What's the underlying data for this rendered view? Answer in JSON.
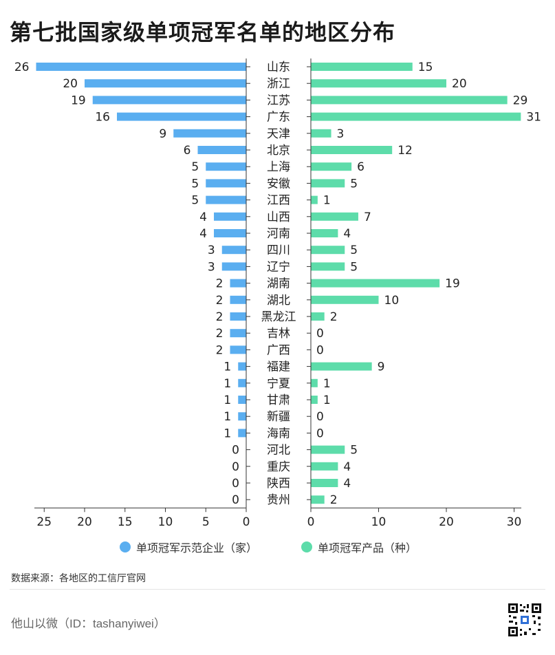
{
  "title": "第七批国家级单项冠军名单的地区分布",
  "legend": {
    "left": "单项冠军示范企业（家）",
    "right": "单项冠军产品（种）"
  },
  "source": "数据来源：各地区的工信厅官网",
  "footer": "他山以微（ID：tashanyiwei）",
  "colors": {
    "left": "#5aaef0",
    "right": "#5ddcaa",
    "axis": "#333333"
  },
  "chart_data": {
    "type": "bar",
    "categories": [
      "山东",
      "浙江",
      "江苏",
      "广东",
      "天津",
      "北京",
      "上海",
      "安徽",
      "江西",
      "山西",
      "河南",
      "四川",
      "辽宁",
      "湖南",
      "湖北",
      "黑龙江",
      "吉林",
      "广西",
      "福建",
      "宁夏",
      "甘肃",
      "新疆",
      "海南",
      "河北",
      "重庆",
      "陕西",
      "贵州"
    ],
    "series": [
      {
        "name": "单项冠军示范企业（家）",
        "values": [
          26,
          20,
          19,
          16,
          9,
          6,
          5,
          5,
          5,
          4,
          4,
          3,
          3,
          2,
          2,
          2,
          2,
          2,
          1,
          1,
          1,
          1,
          1,
          0,
          0,
          0,
          0
        ]
      },
      {
        "name": "单项冠军产品（种）",
        "values": [
          15,
          20,
          29,
          31,
          3,
          12,
          6,
          5,
          1,
          7,
          4,
          5,
          5,
          19,
          10,
          2,
          0,
          0,
          9,
          1,
          1,
          0,
          0,
          5,
          4,
          4,
          2
        ]
      }
    ],
    "left_axis": {
      "lim": [
        0,
        26
      ],
      "ticks": [
        25,
        20,
        15,
        10,
        5,
        0
      ]
    },
    "right_axis": {
      "lim": [
        0,
        31
      ],
      "ticks": [
        0,
        10,
        20,
        30
      ]
    }
  }
}
